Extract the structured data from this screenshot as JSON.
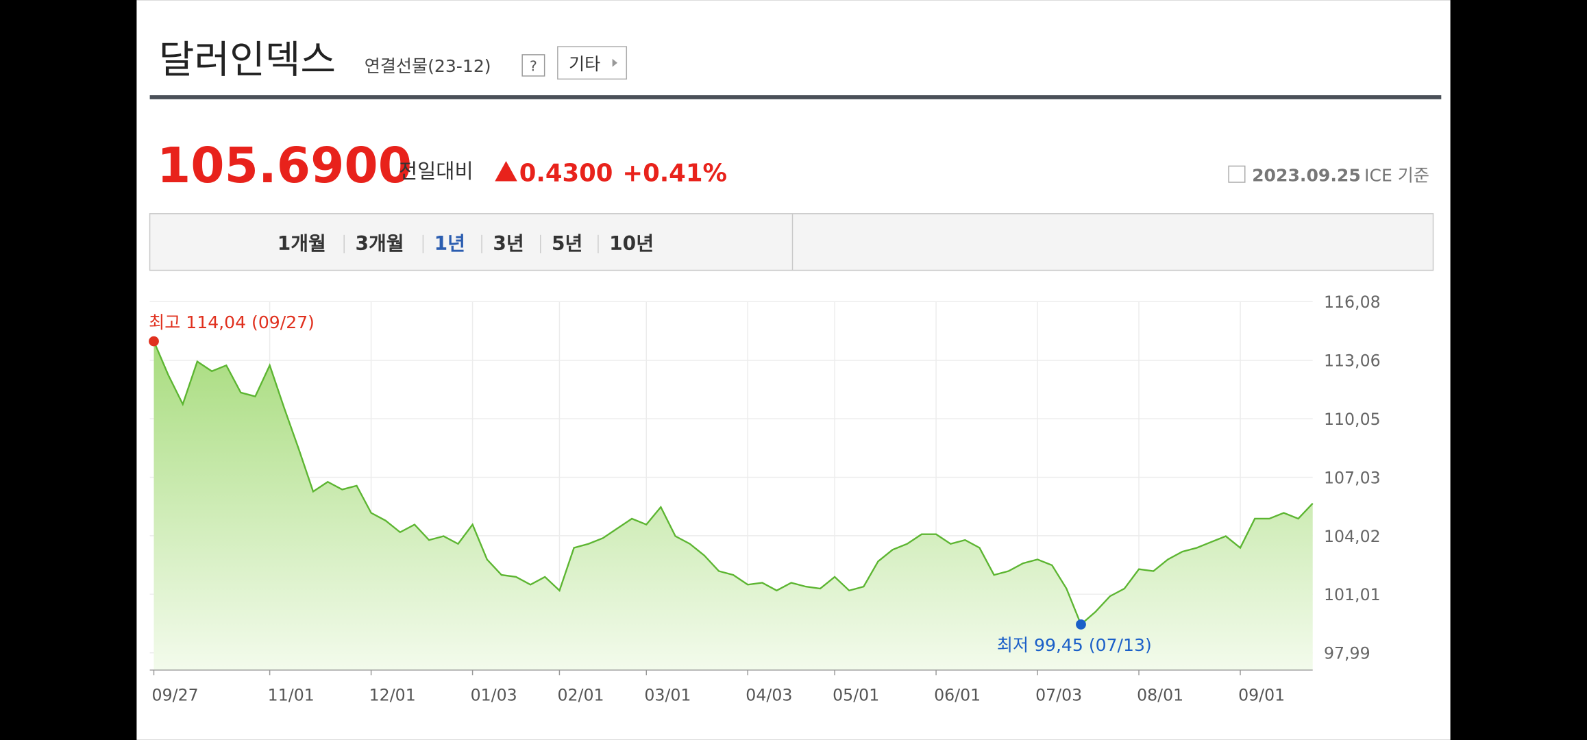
{
  "header": {
    "title": "달러인덱스",
    "subtitle": "연결선물(23-12)",
    "help": "?",
    "more": "기타"
  },
  "quote": {
    "price": "105.6900",
    "change_label": "전일대비",
    "change": "0.4300",
    "change_pct": "+0.41%",
    "date": "2023.09.25",
    "source": "ICE 기준"
  },
  "periods": {
    "items": [
      "1개월",
      "3개월",
      "1년",
      "3년",
      "5년",
      "10년"
    ],
    "selected": "1년"
  },
  "chart_data": {
    "type": "area",
    "categories": [
      "09/27",
      null,
      null,
      null,
      null,
      null,
      null,
      null,
      "11/01",
      null,
      null,
      null,
      null,
      null,
      null,
      "12/01",
      null,
      null,
      null,
      null,
      null,
      null,
      "01/03",
      null,
      null,
      null,
      null,
      null,
      "02/01",
      null,
      null,
      null,
      null,
      null,
      "03/01",
      null,
      null,
      null,
      null,
      null,
      null,
      "04/03",
      null,
      null,
      null,
      null,
      null,
      "05/01",
      null,
      null,
      null,
      null,
      null,
      null,
      "06/01",
      null,
      null,
      null,
      null,
      null,
      null,
      "07/03",
      null,
      null,
      null,
      null,
      null,
      null,
      "08/01",
      null,
      null,
      null,
      null,
      null,
      null,
      "09/01",
      null,
      null,
      null,
      null,
      null
    ],
    "series": [
      {
        "name": "달러인덱스",
        "color": "#5cb531",
        "values": [
          114.04,
          112.3,
          110.8,
          113.0,
          112.5,
          112.8,
          111.4,
          111.2,
          112.8,
          110.6,
          108.5,
          106.3,
          106.8,
          106.4,
          106.6,
          105.2,
          104.8,
          104.2,
          104.6,
          103.8,
          104.0,
          103.6,
          104.6,
          102.8,
          102.0,
          101.9,
          101.5,
          101.9,
          101.2,
          103.4,
          103.6,
          103.9,
          104.4,
          104.9,
          104.6,
          105.5,
          104.0,
          103.6,
          103.0,
          102.2,
          102.0,
          101.5,
          101.6,
          101.2,
          101.6,
          101.4,
          101.3,
          101.9,
          101.2,
          101.4,
          102.7,
          103.3,
          103.6,
          104.1,
          104.1,
          103.6,
          103.8,
          103.4,
          102.0,
          102.2,
          102.6,
          102.8,
          102.5,
          101.3,
          99.45,
          100.1,
          100.9,
          101.3,
          102.3,
          102.2,
          102.8,
          103.2,
          103.4,
          103.7,
          104.0,
          103.4,
          104.9,
          104.9,
          105.2,
          104.9,
          105.69
        ]
      }
    ],
    "ylim": [
      97.1,
      116.08
    ],
    "yticks": [
      {
        "value": 97.99,
        "label": "97,99"
      },
      {
        "value": 101.01,
        "label": "101,01"
      },
      {
        "value": 104.02,
        "label": "104,02"
      },
      {
        "value": 107.03,
        "label": "107,03"
      },
      {
        "value": 110.05,
        "label": "110,05"
      },
      {
        "value": 113.06,
        "label": "113,06"
      },
      {
        "value": 116.08,
        "label": "116,08"
      }
    ],
    "grid": true,
    "annotations": [
      {
        "text": "최고 114,04 (09/27)",
        "index": 0,
        "color": "#e0301e"
      },
      {
        "text": "최저 99,45 (07/13)",
        "index": 64,
        "color": "#1a5fc8"
      }
    ]
  }
}
